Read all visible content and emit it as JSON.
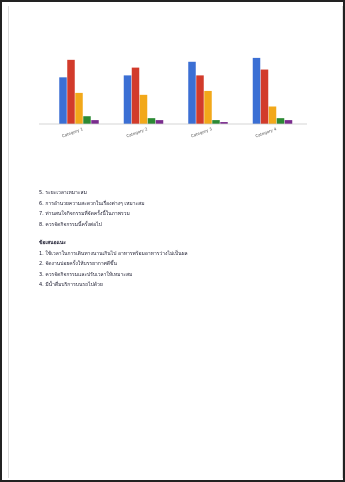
{
  "chart_data": {
    "type": "bar",
    "categories": [
      "Category 1",
      "Category 2",
      "Category 3",
      "Category 4"
    ],
    "series": [
      {
        "color": "#3b6fd4",
        "values": [
          2.4,
          2.5,
          3.2,
          3.4
        ]
      },
      {
        "color": "#d23b2b",
        "values": [
          3.3,
          2.9,
          2.5,
          2.8
        ]
      },
      {
        "color": "#f2a81a",
        "values": [
          1.6,
          1.5,
          1.7,
          0.9
        ]
      },
      {
        "color": "#2c8a34",
        "values": [
          0.4,
          0.3,
          0.2,
          0.3
        ]
      },
      {
        "color": "#7a2c8e",
        "values": [
          0.2,
          0.2,
          0.1,
          0.2
        ]
      }
    ],
    "ylim": [
      0,
      3.6
    ],
    "grid": false,
    "legend": "none"
  },
  "text": {
    "list1": [
      "5. ระยะเวลาเหมาะสม",
      "6. การอำนวยความสะดวกในเรื่องต่างๆ เหมาะสม",
      "7. ท่านสนใจกิจกรรมที่จัดครั้งนี้ในภาพรวม",
      "8. ควรจัดกิจกรรมนี้ครั้งต่อไป"
    ],
    "heading": "ข้อเสนอแนะ",
    "list2": [
      "1. ใช้เวลาในการเดินทางนานเกินไป อาหารพร้อมอาหารว่างไม่เป็นผล",
      "2. จัดงานบ่อยครั้งให้บรรยากาศดีขึ้น",
      "3. ควรจัดกิจกรรมและปรับเวลาให้เหมาะสม",
      "4. มีน้ำดื่มบริการบนรถไปด้วย"
    ]
  }
}
